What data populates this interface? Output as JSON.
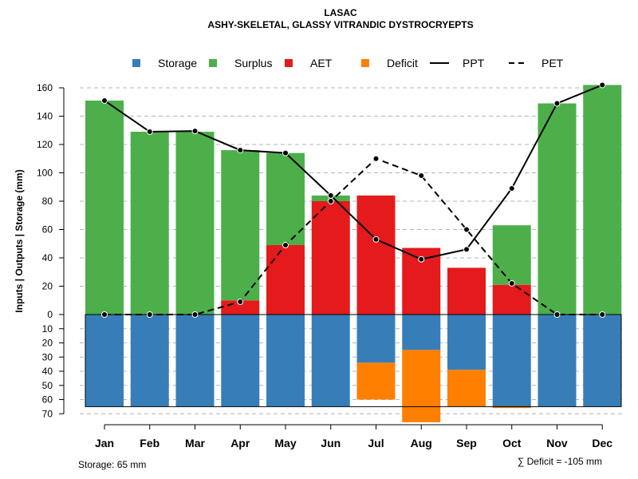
{
  "chart_data": {
    "type": "bar",
    "title": "LASAC",
    "subtitle": "ASHY-SKELETAL, GLASSY VITRANDIC DYSTROCRYEPTS",
    "ylabel": "Inputs | Outputs | Storage    (mm)",
    "categories": [
      "Jan",
      "Feb",
      "Mar",
      "Apr",
      "May",
      "Jun",
      "Jul",
      "Aug",
      "Sep",
      "Oct",
      "Nov",
      "Dec"
    ],
    "y_positive_ticks": [
      "0",
      "20",
      "40",
      "60",
      "80",
      "100",
      "120",
      "140",
      "160"
    ],
    "y_negative_ticks": [
      "10",
      "20",
      "30",
      "40",
      "50",
      "60",
      "70"
    ],
    "ylim_positive": [
      0,
      170
    ],
    "ylim_negative": [
      0,
      70
    ],
    "storage_capacity": 65,
    "legend": [
      {
        "name": "Storage",
        "kind": "box",
        "color": "#377eb8"
      },
      {
        "name": "Surplus",
        "kind": "box",
        "color": "#4daf4a"
      },
      {
        "name": "AET",
        "kind": "box",
        "color": "#e41a1c"
      },
      {
        "name": "Deficit",
        "kind": "box",
        "color": "#ff7f00"
      },
      {
        "name": "PPT",
        "kind": "solid-line",
        "color": "#000000"
      },
      {
        "name": "PET",
        "kind": "dashed-line",
        "color": "#000000"
      }
    ],
    "series": [
      {
        "name": "AET",
        "color": "#e41a1c",
        "values": [
          0,
          0,
          0,
          10,
          49,
          80,
          84,
          47,
          33,
          21,
          0,
          0
        ]
      },
      {
        "name": "Surplus",
        "color": "#4daf4a",
        "values": [
          151,
          129,
          129,
          106,
          65,
          4,
          0,
          0,
          0,
          42,
          149,
          162
        ]
      },
      {
        "name": "Storage",
        "color": "#377eb8",
        "values": [
          65,
          65,
          65,
          65,
          65,
          65,
          34,
          25,
          39,
          65,
          65,
          65
        ]
      },
      {
        "name": "Deficit",
        "color": "#ff7f00",
        "values": [
          0,
          0,
          0,
          0,
          0,
          0,
          26,
          51,
          26,
          1,
          0,
          0
        ]
      },
      {
        "name": "PPT",
        "color": "#000000",
        "values": [
          151,
          129,
          129.5,
          116,
          114,
          84,
          53,
          39,
          46,
          89,
          149,
          162
        ]
      },
      {
        "name": "PET",
        "color": "#000000",
        "values": [
          0,
          0,
          0,
          9,
          49,
          80,
          110,
          98,
          60,
          22,
          0,
          0
        ]
      }
    ]
  },
  "footer": {
    "storage_note": "Storage: 65 mm",
    "deficit_note": "∑ Deficit = -105 mm"
  }
}
